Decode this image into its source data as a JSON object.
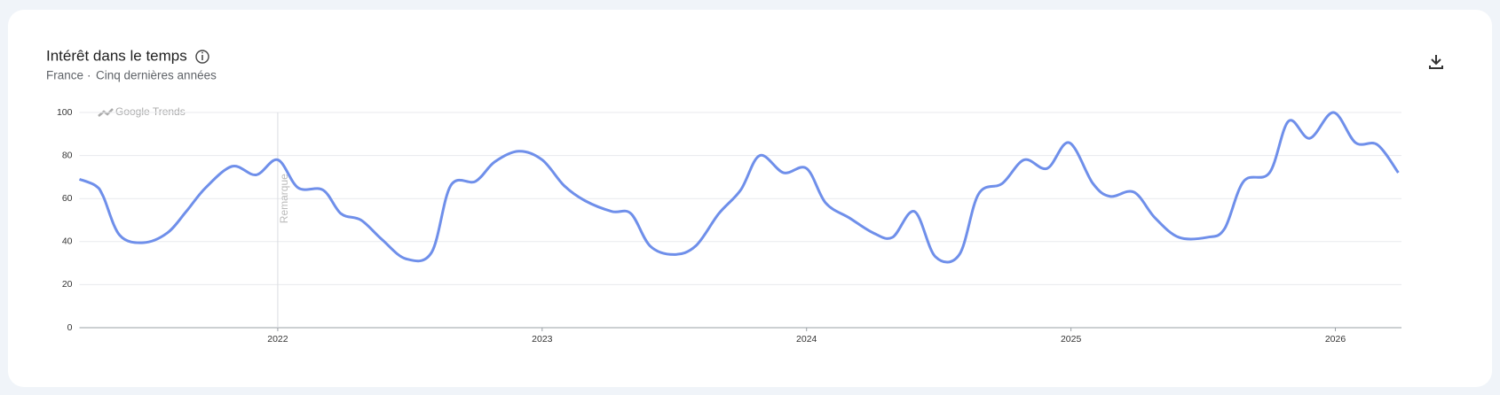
{
  "chart_data": {
    "type": "line",
    "title": "Intérêt dans le temps",
    "subtitle": [
      "France",
      "Cinq dernières années"
    ],
    "subtitle_separator": "·",
    "watermark": "Google Trends",
    "annotation": {
      "x": 2022,
      "label": "Remarque"
    },
    "x": [
      2021.25,
      2021.311,
      2021.34,
      2021.402,
      2021.492,
      2021.582,
      2021.654,
      2021.727,
      2021.828,
      2021.918,
      2022.0,
      2022.077,
      2022.171,
      2022.239,
      2022.315,
      2022.394,
      2022.485,
      2022.582,
      2022.654,
      2022.748,
      2022.82,
      2022.911,
      2023.0,
      2023.083,
      2023.162,
      2023.264,
      2023.336,
      2023.408,
      2023.498,
      2023.581,
      2023.668,
      2023.751,
      2023.823,
      2023.913,
      2024.0,
      2024.072,
      2024.162,
      2024.253,
      2024.325,
      2024.408,
      2024.487,
      2024.578,
      2024.65,
      2024.74,
      2024.823,
      2024.91,
      2024.993,
      2025.083,
      2025.148,
      2025.238,
      2025.318,
      2025.408,
      2025.516,
      2025.581,
      2025.653,
      2025.751,
      2025.823,
      2025.903,
      2025.993,
      2026.076,
      2026.159,
      2026.238
    ],
    "series": [
      {
        "color": "#6f8fea",
        "values": [
          69,
          66,
          61,
          43,
          39.5,
          44,
          54,
          65,
          75,
          71,
          78,
          65,
          64,
          53,
          50,
          41,
          32,
          35,
          66,
          68,
          77,
          82,
          78,
          66,
          59,
          54,
          53,
          38,
          34,
          38,
          53,
          64,
          80,
          72,
          74,
          58,
          51,
          44,
          42,
          54,
          33,
          34,
          62,
          67,
          78,
          74,
          86,
          67,
          61,
          63,
          51,
          42,
          42,
          46,
          68,
          72,
          96,
          88,
          100,
          86,
          85,
          72
        ]
      }
    ],
    "xlim": [
      2021.25,
      2026.25
    ],
    "xticks": [
      2022,
      2023,
      2024,
      2025,
      2026
    ],
    "ylim": [
      0,
      100
    ],
    "yticks": [
      0,
      20,
      40,
      60,
      80,
      100
    ],
    "grid": true
  }
}
